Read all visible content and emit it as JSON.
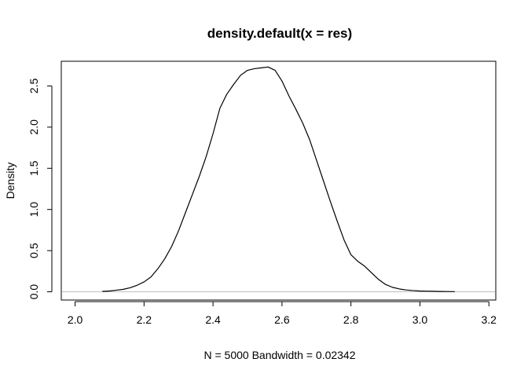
{
  "chart_data": {
    "type": "line",
    "title": "density.default(x = res)",
    "xlabel": "N = 5000   Bandwidth = 0.02342",
    "ylabel": "Density",
    "xlim": [
      1.96,
      3.22
    ],
    "ylim": [
      -0.1,
      2.8
    ],
    "x_ticks": [
      2.0,
      2.2,
      2.4,
      2.6,
      2.8,
      3.0,
      3.2
    ],
    "x_tick_labels": [
      "2.0",
      "2.2",
      "2.4",
      "2.6",
      "2.8",
      "3.0",
      "3.2"
    ],
    "y_ticks": [
      0.0,
      0.5,
      1.0,
      1.5,
      2.0,
      2.5
    ],
    "y_tick_labels": [
      "0.0",
      "0.5",
      "1.0",
      "1.5",
      "2.0",
      "2.5"
    ],
    "baseline": 0,
    "series": [
      {
        "x": [
          2.08,
          2.1,
          2.12,
          2.14,
          2.16,
          2.18,
          2.2,
          2.22,
          2.24,
          2.26,
          2.28,
          2.3,
          2.32,
          2.34,
          2.36,
          2.38,
          2.4,
          2.42,
          2.44,
          2.46,
          2.48,
          2.5,
          2.52,
          2.54,
          2.56,
          2.58,
          2.6,
          2.62,
          2.64,
          2.66,
          2.68,
          2.7,
          2.72,
          2.74,
          2.76,
          2.78,
          2.8,
          2.82,
          2.84,
          2.86,
          2.88,
          2.9,
          2.92,
          2.94,
          2.96,
          2.98,
          3.0,
          3.02,
          3.04,
          3.06,
          3.08,
          3.1
        ],
        "y": [
          0.005,
          0.01,
          0.02,
          0.03,
          0.05,
          0.08,
          0.12,
          0.18,
          0.28,
          0.4,
          0.55,
          0.74,
          0.96,
          1.18,
          1.4,
          1.64,
          1.92,
          2.23,
          2.4,
          2.52,
          2.63,
          2.69,
          2.71,
          2.72,
          2.73,
          2.69,
          2.56,
          2.38,
          2.22,
          2.05,
          1.85,
          1.6,
          1.35,
          1.1,
          0.86,
          0.63,
          0.45,
          0.37,
          0.31,
          0.23,
          0.15,
          0.09,
          0.055,
          0.035,
          0.022,
          0.015,
          0.01,
          0.008,
          0.006,
          0.004,
          0.003,
          0.002
        ]
      }
    ],
    "grid": false,
    "line_color": "#000000",
    "baseline_color": "#bebebe"
  }
}
